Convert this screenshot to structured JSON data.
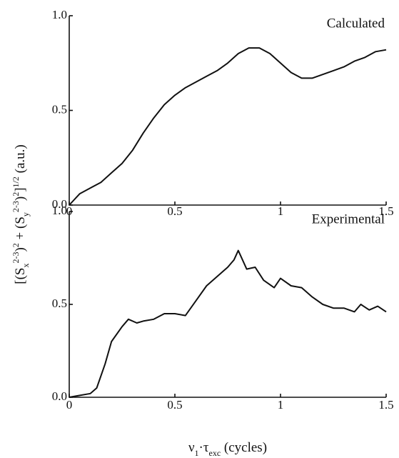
{
  "chart_data": [
    {
      "type": "line",
      "title": "Calculated",
      "color": "#111111",
      "y_label": [
        "[(S",
        "x",
        "2-3",
        ")",
        "2",
        " + (S",
        "y",
        "2-3",
        ")",
        "2",
        "]",
        "1/2",
        " (a.u.)"
      ],
      "x": [
        0,
        0.05,
        0.1,
        0.15,
        0.2,
        0.25,
        0.3,
        0.35,
        0.4,
        0.45,
        0.5,
        0.55,
        0.6,
        0.65,
        0.7,
        0.75,
        0.8,
        0.85,
        0.9,
        0.95,
        1.0,
        1.05,
        1.1,
        1.15,
        1.2,
        1.25,
        1.3,
        1.35,
        1.4,
        1.45,
        1.5
      ],
      "values": [
        0,
        0.06,
        0.09,
        0.12,
        0.17,
        0.22,
        0.29,
        0.38,
        0.46,
        0.53,
        0.58,
        0.62,
        0.65,
        0.68,
        0.71,
        0.75,
        0.8,
        0.83,
        0.83,
        0.8,
        0.75,
        0.7,
        0.67,
        0.67,
        0.69,
        0.71,
        0.73,
        0.76,
        0.78,
        0.81,
        0.82
      ],
      "xlim": [
        0,
        1.5
      ],
      "xticks": [
        0,
        0.5,
        1,
        1.5
      ],
      "ylim": [
        0,
        1
      ],
      "yticks": [
        {
          "value": 0,
          "label": "0.0"
        },
        0.5,
        {
          "value": 1,
          "label": "1.0"
        }
      ]
    },
    {
      "type": "line",
      "title": "Experimental",
      "color": "#111111",
      "x_label": [
        "ν",
        "1",
        "·τ",
        "exc",
        " (cycles)"
      ],
      "x": [
        0,
        0.05,
        0.1,
        0.13,
        0.17,
        0.2,
        0.25,
        0.28,
        0.32,
        0.35,
        0.4,
        0.45,
        0.5,
        0.55,
        0.6,
        0.65,
        0.7,
        0.75,
        0.78,
        0.8,
        0.84,
        0.88,
        0.92,
        0.97,
        1.0,
        1.05,
        1.1,
        1.15,
        1.2,
        1.25,
        1.3,
        1.35,
        1.38,
        1.42,
        1.46,
        1.5
      ],
      "values": [
        0,
        0.01,
        0.02,
        0.05,
        0.18,
        0.3,
        0.38,
        0.42,
        0.4,
        0.41,
        0.42,
        0.45,
        0.45,
        0.44,
        0.52,
        0.6,
        0.65,
        0.7,
        0.74,
        0.79,
        0.69,
        0.7,
        0.63,
        0.59,
        0.64,
        0.6,
        0.59,
        0.54,
        0.5,
        0.48,
        0.48,
        0.46,
        0.5,
        0.47,
        0.49,
        0.46
      ],
      "xlim": [
        0,
        1.5
      ],
      "xticks": [
        0,
        0.5,
        1,
        1.5
      ],
      "ylim": [
        0,
        1
      ],
      "yticks": [
        {
          "value": 0,
          "label": "0.0"
        },
        0.5,
        {
          "value": 1,
          "label": "1.0"
        }
      ]
    }
  ]
}
